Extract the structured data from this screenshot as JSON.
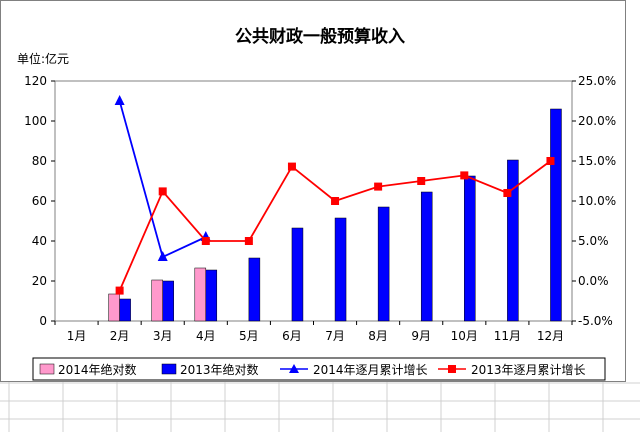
{
  "chart_data": {
    "type": "bar",
    "title": "公共财政一般预算收入",
    "unit_label": "单位:亿元",
    "categories": [
      "1月",
      "2月",
      "3月",
      "4月",
      "5月",
      "6月",
      "7月",
      "8月",
      "9月",
      "10月",
      "11月",
      "12月"
    ],
    "y_left": {
      "min": 0,
      "max": 120,
      "ticks": [
        "0",
        "20",
        "40",
        "60",
        "80",
        "100",
        "120"
      ]
    },
    "y_right": {
      "min": -5,
      "max": 25,
      "ticks": [
        "-5.0%",
        "0.0%",
        "5.0%",
        "10.0%",
        "15.0%",
        "20.0%",
        "25.0%"
      ]
    },
    "series": [
      {
        "name": "2014年绝对数",
        "kind": "bar",
        "axis": "left",
        "color": "#ff99cc",
        "values": [
          null,
          13.5,
          20.5,
          26.5,
          null,
          null,
          null,
          null,
          null,
          null,
          null,
          null
        ]
      },
      {
        "name": "2013年绝对数",
        "kind": "bar",
        "axis": "left",
        "color": "#0000ff",
        "values": [
          null,
          11,
          20,
          25.5,
          31.5,
          46.5,
          51.5,
          57,
          64.5,
          72.5,
          80.5,
          106
        ]
      },
      {
        "name": "2014年逐月累计增长",
        "kind": "line",
        "axis": "right",
        "color": "#0000ff",
        "marker": "triangle",
        "values": [
          null,
          22.5,
          3,
          5.5,
          null,
          null,
          null,
          null,
          null,
          null,
          null,
          null
        ]
      },
      {
        "name": "2013年逐月累计增长",
        "kind": "line",
        "axis": "right",
        "color": "#ff0000",
        "marker": "square",
        "values": [
          null,
          -1.2,
          11.2,
          5,
          5,
          14.3,
          10,
          11.8,
          12.5,
          13.2,
          11,
          15
        ]
      }
    ],
    "grid": false,
    "legend_position": "bottom"
  }
}
